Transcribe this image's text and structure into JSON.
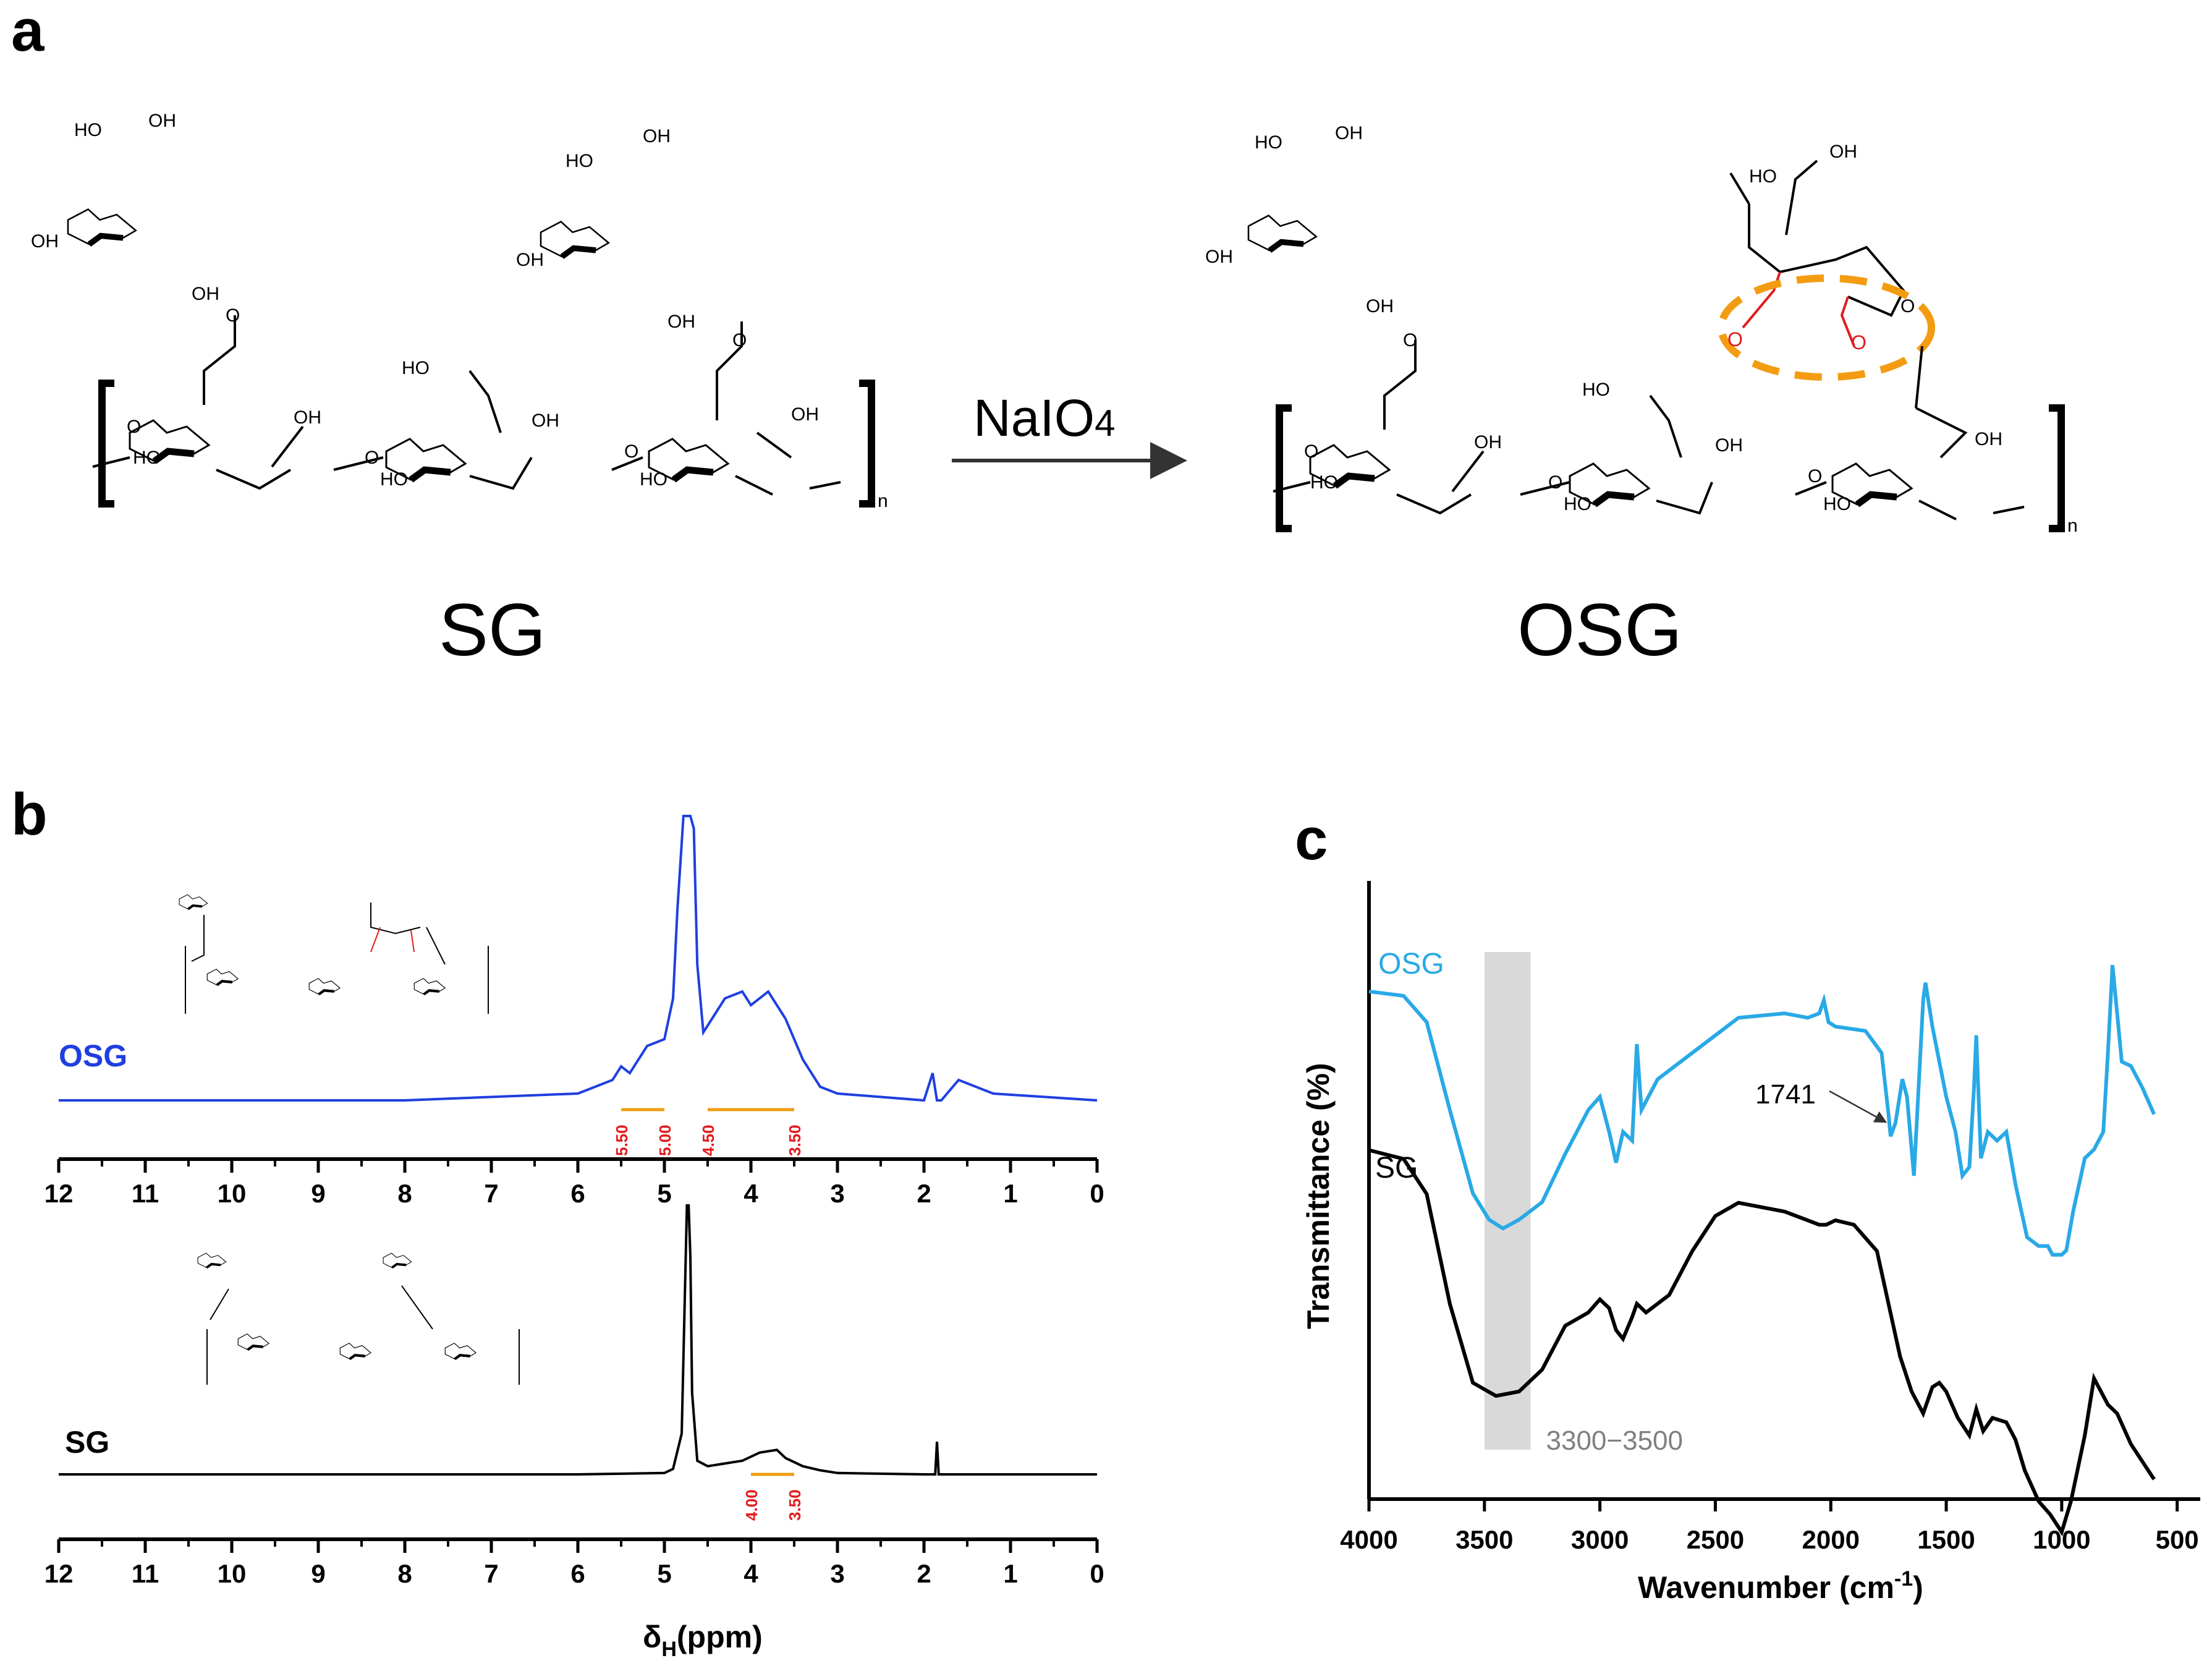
{
  "panels": {
    "a": "a",
    "b": "b",
    "c": "c"
  },
  "scheme": {
    "reactant": "SG",
    "product": "OSG",
    "reagent_main": "NaIO",
    "reagent_sub": "4",
    "oh": "OH",
    "ho": "HO",
    "o": "O",
    "n": "n",
    "aldehyde_o": "O"
  },
  "chart_data": [
    {
      "type": "line",
      "panel": "b",
      "title": "OSG",
      "x_reversed": true,
      "xlim": [
        12,
        0
      ],
      "xticks": [
        "12",
        "11",
        "10",
        "9",
        "8",
        "7",
        "6",
        "5",
        "4",
        "3",
        "2",
        "1",
        "0"
      ],
      "xlabel": "",
      "series": [
        {
          "name": "OSG",
          "color": "#1f3fe0",
          "x": [
            12,
            8,
            6,
            5.6,
            5.5,
            5.4,
            5.2,
            5.0,
            4.9,
            4.85,
            4.78,
            4.74,
            4.72,
            4.7,
            4.66,
            4.62,
            4.55,
            4.45,
            4.3,
            4.1,
            4.0,
            3.8,
            3.6,
            3.4,
            3.2,
            3,
            2,
            1.9,
            1.85,
            1.8,
            1.6,
            1.2,
            0
          ],
          "y": [
            0,
            0,
            0.01,
            0.03,
            0.05,
            0.04,
            0.08,
            0.09,
            0.15,
            0.28,
            0.6,
            1,
            0.95,
            0.7,
            0.4,
            0.2,
            0.1,
            0.12,
            0.15,
            0.16,
            0.14,
            0.16,
            0.12,
            0.06,
            0.02,
            0.01,
            0,
            0.04,
            0,
            0,
            0.03,
            0.01,
            0
          ]
        },
        {
          "name": "SG",
          "color": "#000000",
          "x": [
            12,
            8,
            6,
            5,
            4.9,
            4.8,
            4.74,
            4.72,
            4.7,
            4.68,
            4.62,
            4.5,
            4.3,
            4.1,
            3.9,
            3.7,
            3.6,
            3.4,
            3.2,
            3,
            2,
            1.87,
            1.85,
            1.83,
            1,
            0
          ],
          "y": [
            0,
            0,
            0,
            0.005,
            0.02,
            0.15,
            1,
            1.02,
            0.8,
            0.3,
            0.05,
            0.03,
            0.04,
            0.05,
            0.08,
            0.09,
            0.06,
            0.03,
            0.015,
            0.005,
            0,
            0,
            0.12,
            0,
            0,
            0
          ]
        }
      ],
      "series_labels": [
        "OSG",
        "SG"
      ],
      "range_annotations": [
        {
          "series": "OSG",
          "from": "5.50",
          "to": "5.00"
        },
        {
          "series": "OSG",
          "from": "4.50",
          "to": "3.50"
        },
        {
          "series": "SG",
          "from": "4.00",
          "to": "3.50"
        }
      ],
      "xlabel_main": "δ",
      "xlabel_sub": "H",
      "xlabel_rest": "(ppm)"
    },
    {
      "type": "line",
      "panel": "c",
      "x_reversed": true,
      "xlim": [
        4000,
        400
      ],
      "xticks": [
        "4000",
        "3500",
        "3000",
        "2500",
        "2000",
        "1500",
        "1000",
        "500"
      ],
      "ylabel": "Transmittance (%)",
      "xlabel_main": "Wavenumber (cm",
      "xlabel_sup": "-1",
      "xlabel_rest": ")",
      "series": [
        {
          "name": "OSG",
          "color": "#29a9e6",
          "x": [
            4000,
            3850,
            3750,
            3650,
            3550,
            3480,
            3420,
            3350,
            3250,
            3150,
            3050,
            3000,
            2960,
            2930,
            2900,
            2860,
            2840,
            2820,
            2750,
            2600,
            2400,
            2200,
            2100,
            2050,
            2030,
            2010,
            1980,
            1850,
            1780,
            1750,
            1741,
            1720,
            1690,
            1670,
            1640,
            1630,
            1600,
            1590,
            1560,
            1500,
            1460,
            1430,
            1400,
            1380,
            1370,
            1350,
            1320,
            1280,
            1240,
            1200,
            1150,
            1100,
            1060,
            1040,
            1000,
            980,
            950,
            900,
            860,
            820,
            800,
            780,
            740,
            700,
            650,
            600
          ],
          "y": [
            72,
            71,
            65,
            45,
            26,
            20,
            18,
            20,
            24,
            35,
            45,
            48,
            40,
            33,
            40,
            38,
            60,
            45,
            52,
            58,
            66,
            67,
            66,
            67,
            70,
            65,
            64,
            63,
            58,
            44,
            39,
            42,
            52,
            48,
            30,
            40,
            70,
            74,
            64,
            48,
            40,
            30,
            32,
            50,
            62,
            34,
            40,
            38,
            40,
            28,
            16,
            14,
            14,
            12,
            12,
            13,
            22,
            34,
            36,
            40,
            58,
            78,
            56,
            55,
            50,
            44
          ]
        },
        {
          "name": "SG",
          "color": "#000000",
          "x": [
            4000,
            3850,
            3750,
            3650,
            3550,
            3450,
            3350,
            3250,
            3150,
            3050,
            3000,
            2960,
            2930,
            2900,
            2860,
            2840,
            2800,
            2700,
            2600,
            2500,
            2400,
            2300,
            2200,
            2100,
            2050,
            2020,
            1980,
            1900,
            1800,
            1750,
            1700,
            1650,
            1600,
            1560,
            1530,
            1500,
            1450,
            1400,
            1380,
            1370,
            1340,
            1300,
            1240,
            1200,
            1160,
            1100,
            1050,
            1000,
            960,
            900,
            860,
            840,
            800,
            760,
            700,
            650,
            600
          ],
          "y": [
            95,
            93,
            85,
            60,
            42,
            39,
            40,
            45,
            55,
            58,
            61,
            59,
            54,
            52,
            57,
            60,
            58,
            62,
            72,
            80,
            83,
            82,
            81,
            79,
            78,
            78,
            79,
            78,
            72,
            60,
            48,
            40,
            35,
            41,
            42,
            40,
            34,
            30,
            34,
            36,
            31,
            34,
            33,
            29,
            22,
            15,
            12,
            8,
            15,
            30,
            43,
            41,
            37,
            35,
            28,
            24,
            20
          ]
        }
      ],
      "series_labels": [
        "OSG",
        "SG"
      ],
      "annotations": [
        {
          "text": "1741",
          "at": 1741
        },
        {
          "text": "3300−3500",
          "band_from": 3500,
          "band_to": 3300
        }
      ]
    }
  ]
}
